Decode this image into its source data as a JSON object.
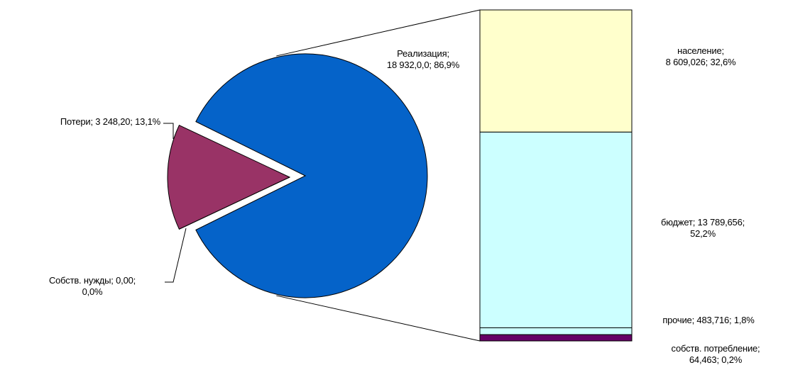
{
  "chart_data": {
    "type": "pie",
    "variant": "bar-of-pie",
    "pie": {
      "slices": [
        {
          "category": "Реализация",
          "value": 18932.0,
          "percent": 86.9,
          "color": "#0563C9",
          "label_lines": [
            "Реализация;",
            "18 932,0,0; 86,9%"
          ]
        },
        {
          "category": "Потери",
          "value": 3248.2,
          "percent": 13.1,
          "color": "#993366",
          "label_lines": [
            "Потери; 3 248,20; 13,1%"
          ]
        },
        {
          "category": "Собств. нужды",
          "value": 0.0,
          "percent": 0.0,
          "color": "#993366",
          "label_lines": [
            "Собств. нужды; 0,00;",
            "0,0%"
          ]
        }
      ]
    },
    "bar": {
      "segments": [
        {
          "category": "население",
          "value": 8609.026,
          "percent": 32.6,
          "color": "#FFFFCC",
          "label_lines": [
            "население;",
            "8 609,026; 32,6%"
          ]
        },
        {
          "category": "бюджет",
          "value": 13789.656,
          "percent": 52.2,
          "color": "#CCFFFF",
          "label_lines": [
            "бюджет; 13 789,656;",
            "52,2%"
          ]
        },
        {
          "category": "прочие",
          "value": 483.716,
          "percent": 1.8,
          "color": "#CCFFFF",
          "label_lines": [
            "прочие; 483,716; 1,8%"
          ]
        },
        {
          "category": "собств. потребление",
          "value": 64.463,
          "percent": 0.2,
          "color": "#660066",
          "label_lines": [
            "собств. потребление;",
            "64,463; 0,2%"
          ]
        }
      ]
    }
  }
}
